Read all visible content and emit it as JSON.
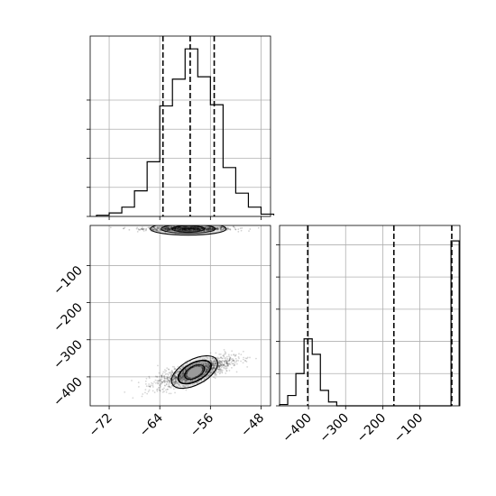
{
  "chart_data": [
    {
      "type": "histogram",
      "panel": "top-left",
      "variable": 1,
      "bins": [
        -74,
        -72,
        -70,
        -68,
        -66,
        -64,
        -62,
        -60,
        -58,
        -56,
        -54,
        -52,
        -50,
        -48,
        -46
      ],
      "counts": [
        1,
        3,
        8,
        22,
        47,
        95,
        118,
        144,
        120,
        96,
        42,
        20,
        8,
        2,
        1
      ],
      "quantile_lines": [
        -63.5,
        -59.2,
        -55.4
      ],
      "xlim": [
        -75,
        -46.5
      ],
      "ylim": [
        0,
        155
      ],
      "x_ticks": [
        -72,
        -64,
        -56,
        -48
      ],
      "y_ticks_unlabeled": [
        0,
        25,
        50,
        75,
        100
      ],
      "grid": true
    },
    {
      "type": "scatter-density",
      "panel": "bottom-left",
      "xlim": [
        -75,
        -46.5
      ],
      "ylim": [
        -478,
        8
      ],
      "clusters": [
        {
          "x_center": -59.5,
          "y_center": -1,
          "x_spread": 3.2,
          "y_spread": 3
        },
        {
          "x_center": -58.5,
          "y_center": -387,
          "x_spread": 2.8,
          "y_spread": 20,
          "correlation": 0.75
        }
      ],
      "x_tick_labels": [
        "−72",
        "−64",
        "−56",
        "−48"
      ],
      "x_ticks": [
        -72,
        -64,
        -56,
        -48
      ],
      "y_tick_labels": [
        "−100",
        "−200",
        "−300",
        "−400"
      ],
      "y_ticks": [
        -100,
        -200,
        -300,
        -400
      ],
      "grid": true
    },
    {
      "type": "histogram",
      "panel": "bottom-right",
      "variable": 2,
      "bins": [
        -478,
        -456,
        -434,
        -412,
        -390,
        -368,
        -346,
        -324,
        -302,
        -280,
        -258,
        -236,
        -214,
        -192,
        -170,
        -148,
        -126,
        -104,
        -82,
        -60,
        -38,
        -16,
        6
      ],
      "counts": [
        1,
        8,
        25,
        52,
        40,
        12,
        3,
        0,
        0,
        0,
        0,
        0,
        0,
        0,
        0,
        0,
        0,
        0,
        0,
        0,
        0,
        128
      ],
      "quantile_lines": [
        -402,
        -170,
        -14
      ],
      "xlim": [
        -478,
        8
      ],
      "ylim": [
        0,
        140
      ],
      "x_tick_labels": [
        "−400",
        "−300",
        "−200",
        "−100"
      ],
      "x_ticks": [
        -400,
        -300,
        -200,
        -100
      ],
      "y_ticks_unlabeled": [
        0,
        25,
        50,
        75,
        100,
        125
      ],
      "grid": true
    }
  ]
}
